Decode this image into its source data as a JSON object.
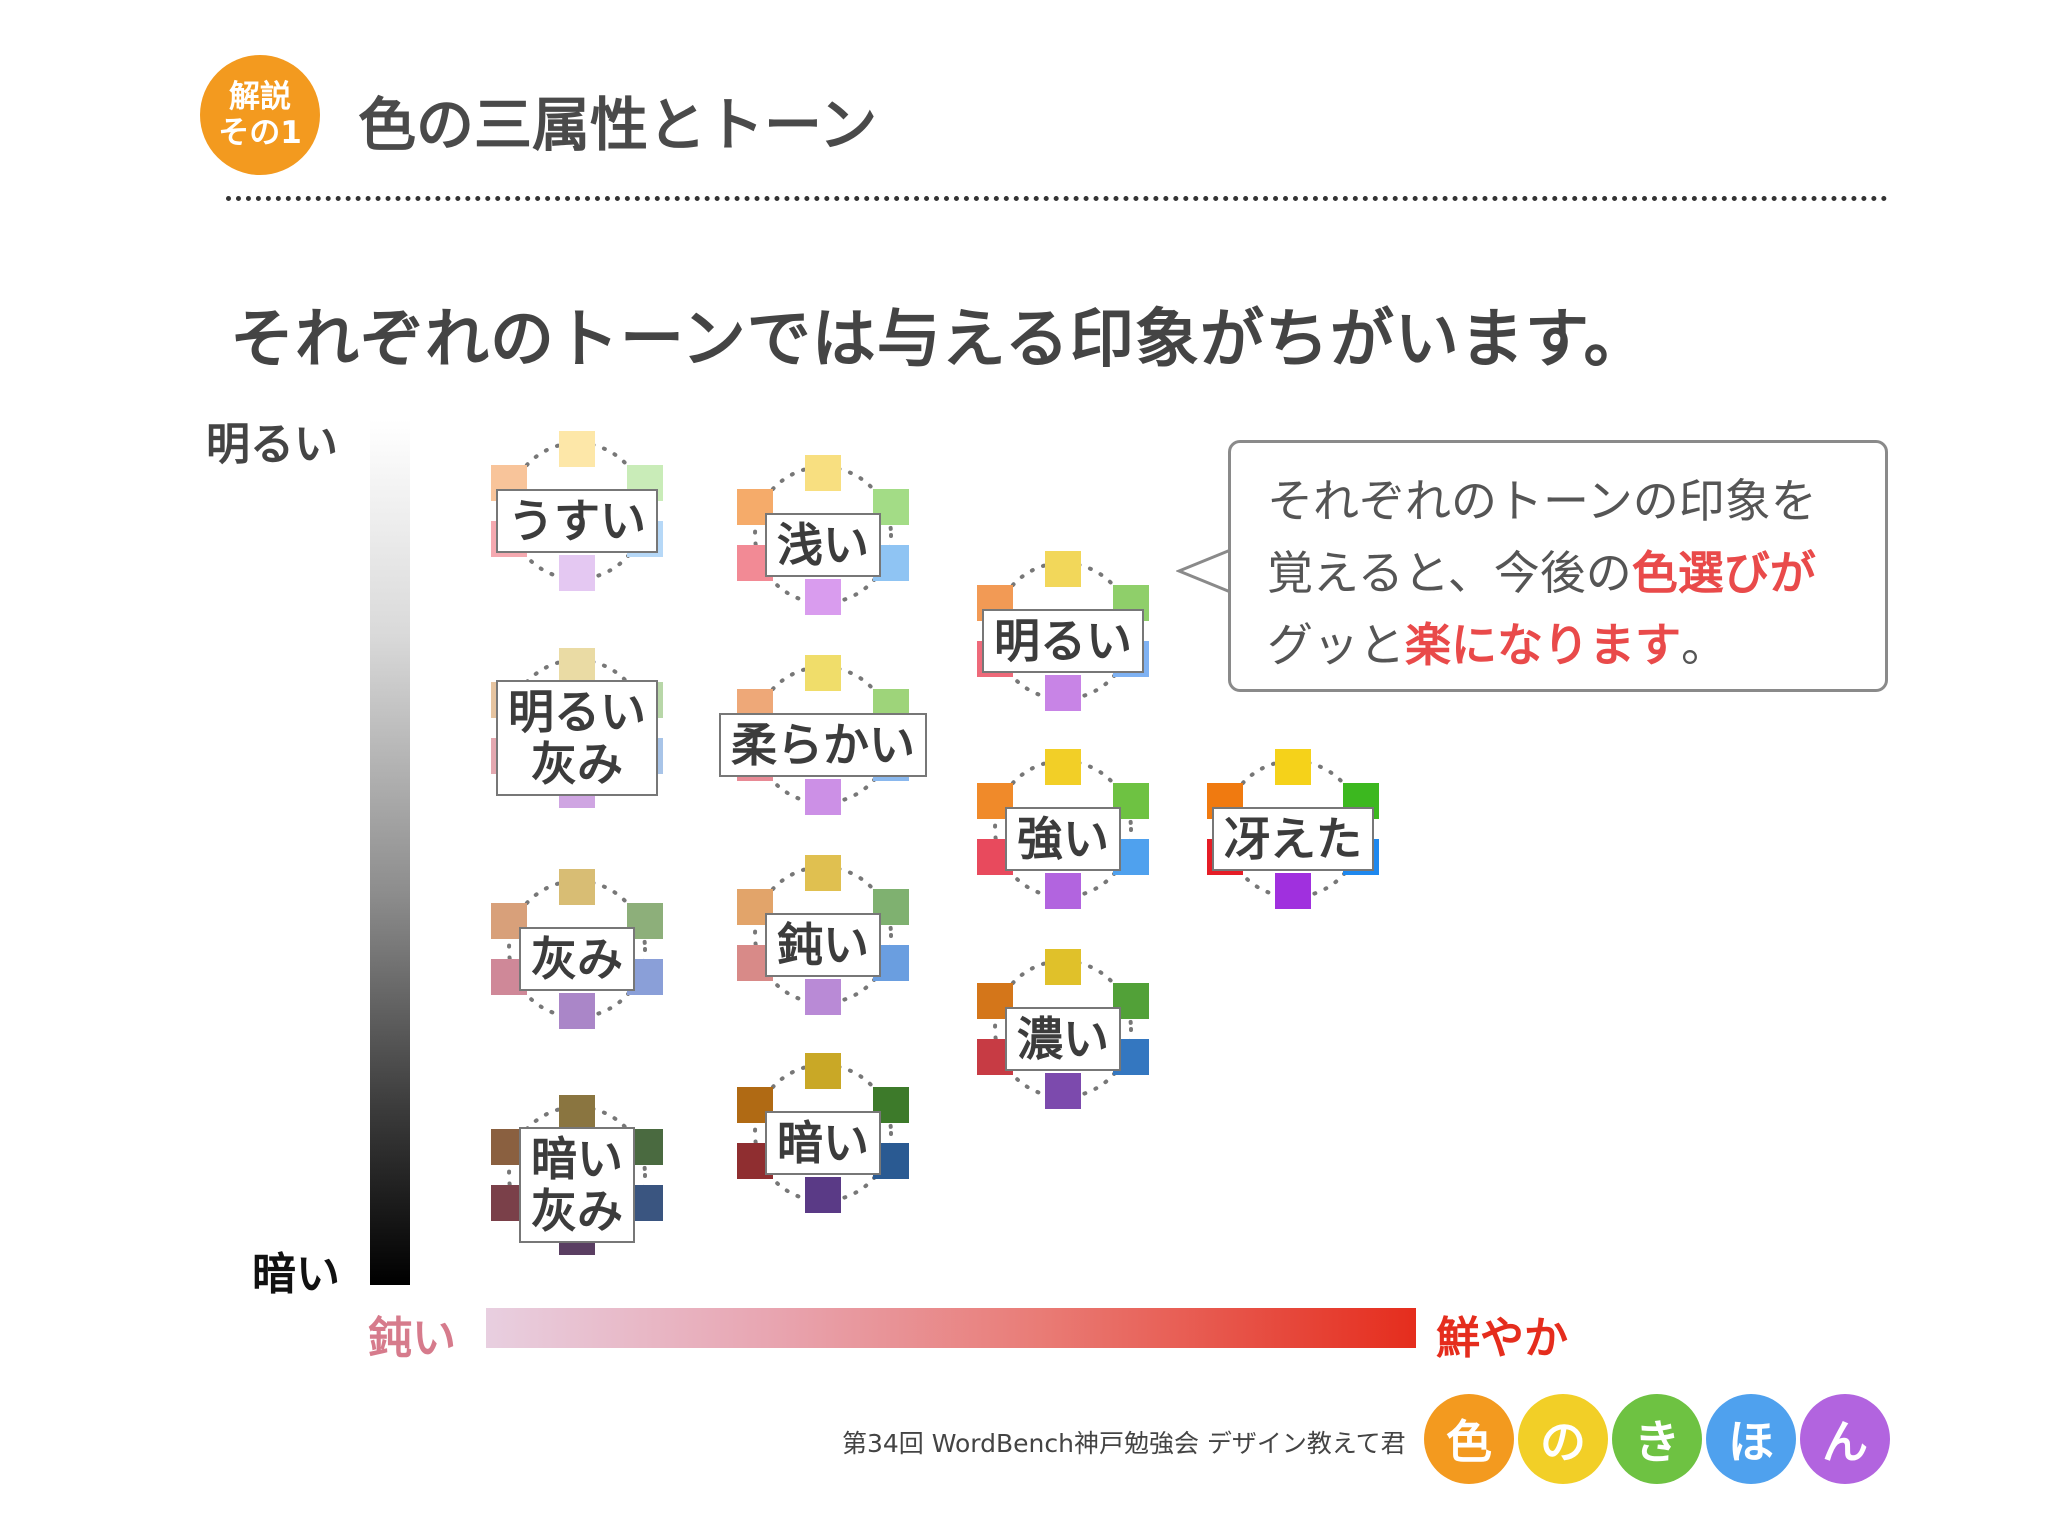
{
  "header": {
    "badge_line1": "解説",
    "badge_line2": "その1",
    "title": "色の三属性とトーン"
  },
  "headline": "それぞれのトーンでは与える印象がちがいます。",
  "axes": {
    "bright_label": "明るい",
    "dark_label": "暗い",
    "dull_label": "鈍い",
    "vivid_label": "鮮やか"
  },
  "tones": [
    {
      "label_lines": [
        "うすい"
      ],
      "colors": [
        "#fde7a8",
        "#c9ecb8",
        "#b6d8f7",
        "#e4c8f2",
        "#f5a9b0",
        "#f8c49a"
      ]
    },
    {
      "label_lines": [
        "浅い"
      ],
      "colors": [
        "#f8df80",
        "#a3dc86",
        "#8fc4f3",
        "#d99cee",
        "#f28a95",
        "#f5ab6a"
      ]
    },
    {
      "label_lines": [
        "明るい"
      ],
      "colors": [
        "#f2d75a",
        "#8fcf6a",
        "#7fb2f3",
        "#c884e6",
        "#ee6a7a",
        "#f29a55"
      ]
    },
    {
      "label_lines": [
        "明るい",
        "灰み"
      ],
      "colors": [
        "#eadba4",
        "#b8d7a8",
        "#a8c4e8",
        "#cfa5e2",
        "#e4a8b0",
        "#e6c4a0"
      ]
    },
    {
      "label_lines": [
        "柔らかい"
      ],
      "colors": [
        "#f0dd6a",
        "#9ed47a",
        "#8ab8ee",
        "#cc90e6",
        "#e88a95",
        "#eea878"
      ]
    },
    {
      "label_lines": [
        "強い"
      ],
      "colors": [
        "#f2cf27",
        "#6ec242",
        "#4fa1ee",
        "#b264df",
        "#e84a5d",
        "#f08a2a"
      ]
    },
    {
      "label_lines": [
        "冴えた"
      ],
      "colors": [
        "#f5d21a",
        "#3cb81f",
        "#1e88ee",
        "#a030de",
        "#e51d26",
        "#f07a10"
      ]
    },
    {
      "label_lines": [
        "灰み"
      ],
      "colors": [
        "#d8bd74",
        "#8daf7a",
        "#8a9fd8",
        "#aa86c8",
        "#cf8898",
        "#d8a07a"
      ]
    },
    {
      "label_lines": [
        "鈍い"
      ],
      "colors": [
        "#e0c050",
        "#7fb170",
        "#6a9ee0",
        "#b98ad6",
        "#d88a88",
        "#e2a46a"
      ]
    },
    {
      "label_lines": [
        "濃い"
      ],
      "colors": [
        "#e0c12a",
        "#52a138",
        "#3477c0",
        "#7c4aad",
        "#c73b44",
        "#d4761a"
      ]
    },
    {
      "label_lines": [
        "暗い",
        "灰み"
      ],
      "colors": [
        "#8a7540",
        "#4a6a40",
        "#3a5580",
        "#5a3e62",
        "#7a4049",
        "#8a6040"
      ]
    },
    {
      "label_lines": [
        "暗い"
      ],
      "colors": [
        "#c9a826",
        "#3d7a2a",
        "#2a5a92",
        "#5a3a86",
        "#8f2e30",
        "#b06a14"
      ]
    }
  ],
  "callout": {
    "line1": "それぞれのトーンの印象を",
    "line2_a": "覚えると、今後の",
    "line2_b": "色選びが",
    "line3_a": "グッと",
    "line3_b": "楽になります",
    "line3_c": "。"
  },
  "footer": {
    "text": "第34回 WordBench神戸勉強会 デザイン教えて君",
    "circles": [
      {
        "char": "色",
        "color": "#f39a1f"
      },
      {
        "char": "の",
        "color": "#f2cf27"
      },
      {
        "char": "き",
        "color": "#6ec242"
      },
      {
        "char": "ほ",
        "color": "#4fa1ee"
      },
      {
        "char": "ん",
        "color": "#b264df"
      }
    ]
  }
}
